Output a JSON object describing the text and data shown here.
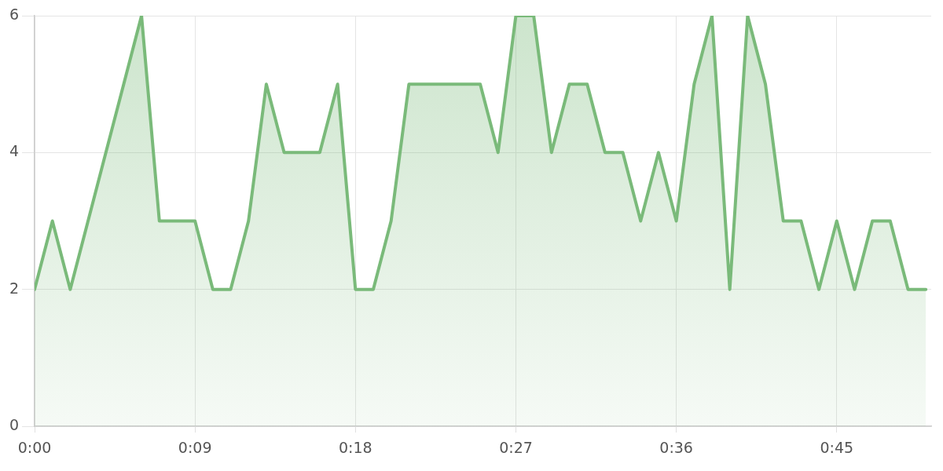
{
  "chart_data": {
    "type": "area",
    "x": [
      0,
      1,
      2,
      3,
      4,
      5,
      6,
      7,
      8,
      9,
      10,
      11,
      12,
      13,
      14,
      15,
      16,
      17,
      18,
      19,
      20,
      21,
      22,
      23,
      24,
      25,
      26,
      27,
      28,
      29,
      30,
      31,
      32,
      33,
      34,
      35,
      36,
      37,
      38,
      39,
      40,
      41,
      42,
      43,
      44,
      45,
      46,
      47,
      48,
      49,
      50
    ],
    "series": [
      {
        "color": "#7aba7a",
        "values": [
          2,
          3,
          2,
          3,
          4,
          5,
          6,
          3,
          3,
          3,
          2,
          2,
          3,
          5,
          4,
          4,
          4,
          5,
          2,
          2,
          3,
          5,
          5,
          5,
          5,
          5,
          4,
          6,
          6,
          4,
          5,
          5,
          4,
          4,
          3,
          4,
          3,
          5,
          6,
          2,
          6,
          5,
          3,
          3,
          2,
          3,
          2,
          3,
          3,
          2,
          2
        ]
      }
    ],
    "xlim": [
      0,
      50.3
    ],
    "xticks": [
      {
        "value": 0,
        "label": "0:00"
      },
      {
        "value": 9,
        "label": "0:09"
      },
      {
        "value": 18,
        "label": "0:18"
      },
      {
        "value": 27,
        "label": "0:27"
      },
      {
        "value": 36,
        "label": "0:36"
      },
      {
        "value": 45,
        "label": "0:45"
      }
    ],
    "ylim": [
      0,
      6
    ],
    "yticks": [
      0,
      2,
      4,
      6
    ],
    "grid": true,
    "marker": "none",
    "line_style": "solid"
  }
}
